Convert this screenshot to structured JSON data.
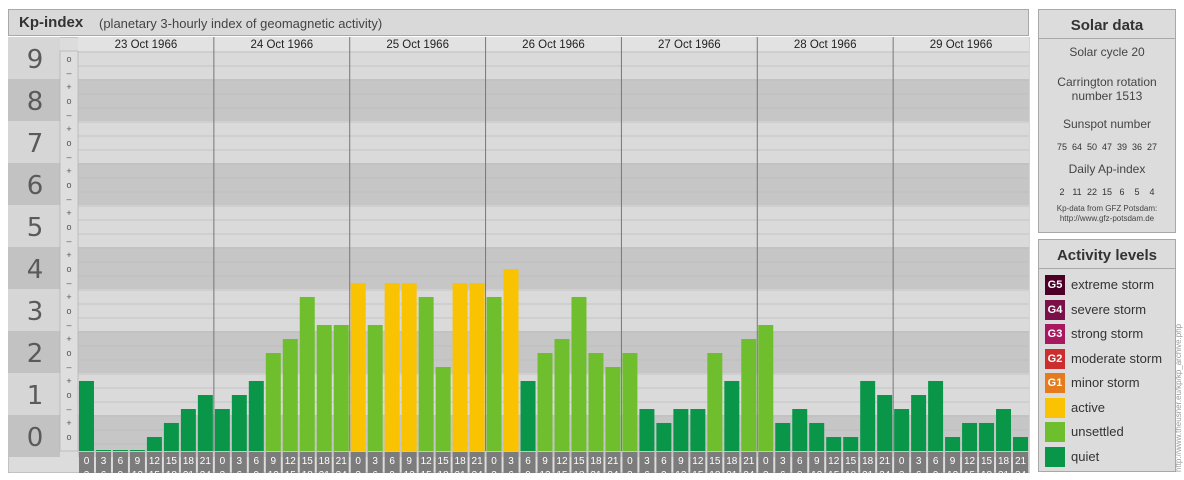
{
  "header": {
    "title": "Kp-index",
    "subtitle": "(planetary 3-hourly index of geomagnetic activity)"
  },
  "chart_data": {
    "type": "bar",
    "y_ticks": [
      "0",
      "1",
      "2",
      "3",
      "4",
      "5",
      "6",
      "7",
      "8",
      "9"
    ],
    "ylim": [
      0,
      9
    ],
    "days": [
      "23 Oct 1966",
      "24 Oct 1966",
      "25 Oct 1966",
      "26 Oct 1966",
      "27 Oct 1966",
      "28 Oct 1966",
      "29 Oct 1966"
    ],
    "interval_labels": [
      [
        "0",
        "3"
      ],
      [
        "3",
        "6"
      ],
      [
        "6",
        "9"
      ],
      [
        "9",
        "12"
      ],
      [
        "12",
        "15"
      ],
      [
        "15",
        "18"
      ],
      [
        "18",
        "21"
      ],
      [
        "21",
        "24"
      ]
    ],
    "values": [
      [
        1.667,
        0.0,
        0.0,
        0.0,
        0.333,
        0.667,
        1.0,
        1.333
      ],
      [
        1.0,
        1.333,
        1.667,
        2.333,
        2.667,
        3.667,
        3.0,
        3.0
      ],
      [
        4.0,
        3.0,
        4.0,
        4.0,
        3.667,
        2.0,
        4.0,
        4.0
      ],
      [
        3.667,
        4.333,
        1.667,
        2.333,
        2.667,
        3.667,
        2.333,
        2.0
      ],
      [
        2.333,
        1.0,
        0.667,
        1.0,
        1.0,
        2.333,
        1.667,
        2.667
      ],
      [
        3.0,
        0.667,
        1.0,
        0.667,
        0.333,
        0.333,
        1.667,
        1.333
      ],
      [
        1.0,
        1.333,
        1.667,
        0.333,
        0.667,
        0.667,
        1.0,
        0.333
      ]
    ],
    "level_colors": {
      "quiet": "#0a9648",
      "unsettled": "#6fbe2e",
      "active": "#f9c301"
    },
    "grid": true
  },
  "solar": {
    "title": "Solar data",
    "cycle": "Solar cycle 20",
    "carrington_line1": "Carrington rotation",
    "carrington_line2": "number 1513",
    "sunspot_title": "Sunspot number",
    "sunspot_values": [
      "75",
      "64",
      "50",
      "47",
      "39",
      "36",
      "27"
    ],
    "ap_title": "Daily Ap-index",
    "ap_values": [
      "2",
      "11",
      "22",
      "15",
      "6",
      "5",
      "4"
    ],
    "source_line1": "Kp-data from GFZ Potsdam:",
    "source_line2": "http://www.gfz-potsdam.de"
  },
  "activity": {
    "title": "Activity levels",
    "levels": [
      {
        "badge": "G5",
        "label": "extreme storm",
        "color": "#4d0026"
      },
      {
        "badge": "G4",
        "label": "severe storm",
        "color": "#7a1048"
      },
      {
        "badge": "G3",
        "label": "strong storm",
        "color": "#a8185e"
      },
      {
        "badge": "G2",
        "label": "moderate storm",
        "color": "#cc2e2e"
      },
      {
        "badge": "G1",
        "label": "minor storm",
        "color": "#e57b1c"
      },
      {
        "badge": "",
        "label": "active",
        "color": "#f9c301"
      },
      {
        "badge": "",
        "label": "unsettled",
        "color": "#6fbe2e"
      },
      {
        "badge": "",
        "label": "quiet",
        "color": "#0a9648"
      }
    ]
  },
  "credit": "http://www.theusner.eu/kp/kp_archive.php"
}
